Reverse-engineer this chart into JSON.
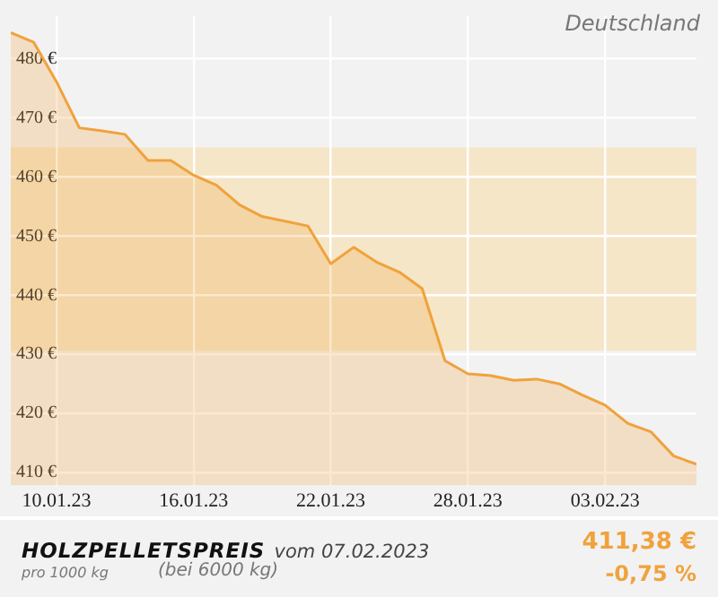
{
  "chart_data": {
    "type": "area",
    "title": "HOLZPELLETSPREIS",
    "subtitle": "vom 07.02.2023",
    "annotations": [
      "Deutschland",
      "pro 1000 kg",
      "(bei 6000 kg)",
      "411,38 €",
      "-0,75 %"
    ],
    "x": [
      "2023-01-08",
      "2023-01-09",
      "2023-01-10",
      "2023-01-11",
      "2023-01-12",
      "2023-01-13",
      "2023-01-14",
      "2023-01-15",
      "2023-01-16",
      "2023-01-17",
      "2023-01-18",
      "2023-01-19",
      "2023-01-20",
      "2023-01-21",
      "2023-01-22",
      "2023-01-23",
      "2023-01-24",
      "2023-01-25",
      "2023-01-26",
      "2023-01-27",
      "2023-01-28",
      "2023-01-29",
      "2023-01-30",
      "2023-01-31",
      "2023-02-01",
      "2023-02-02",
      "2023-02-03",
      "2023-02-04",
      "2023-02-05",
      "2023-02-06",
      "2023-02-07"
    ],
    "series": [
      {
        "color": "#f0a23c",
        "values": [
          484.4,
          482.8,
          476.1,
          468.3,
          467.8,
          467.2,
          462.8,
          462.8,
          460.3,
          458.6,
          455.3,
          453.3,
          452.5,
          451.7,
          445.3,
          448.1,
          445.6,
          443.9,
          441.1,
          428.9,
          426.7,
          426.4,
          425.6,
          425.8,
          425.0,
          423.1,
          421.4,
          418.3,
          416.9,
          412.8,
          411.4
        ]
      }
    ],
    "xlim": [
      "2023-01-08",
      "2023-02-07"
    ],
    "xticks": [
      {
        "value": "2023-01-10",
        "label": "10.01.23"
      },
      {
        "value": "2023-01-16",
        "label": "16.01.23"
      },
      {
        "value": "2023-01-22",
        "label": "22.01.23"
      },
      {
        "value": "2023-01-28",
        "label": "28.01.23"
      },
      {
        "value": "2023-02-03",
        "label": "03.02.23"
      }
    ],
    "ylim": [
      407.8,
      487.2
    ],
    "yticks": [
      {
        "value": 410,
        "label": "410 €"
      },
      {
        "value": 420,
        "label": "420 €"
      },
      {
        "value": 430,
        "label": "430 €"
      },
      {
        "value": 440,
        "label": "440 €"
      },
      {
        "value": 450,
        "label": "450 €"
      },
      {
        "value": 460,
        "label": "460 €"
      },
      {
        "value": 470,
        "label": "470 €"
      },
      {
        "value": 480,
        "label": "480 €"
      }
    ],
    "bands": [
      {
        "axis": "y",
        "from": 430.6,
        "to": 465.0,
        "color": "#f6e6c8"
      }
    ],
    "grid": true,
    "marker": "none",
    "line_style": "solid"
  }
}
